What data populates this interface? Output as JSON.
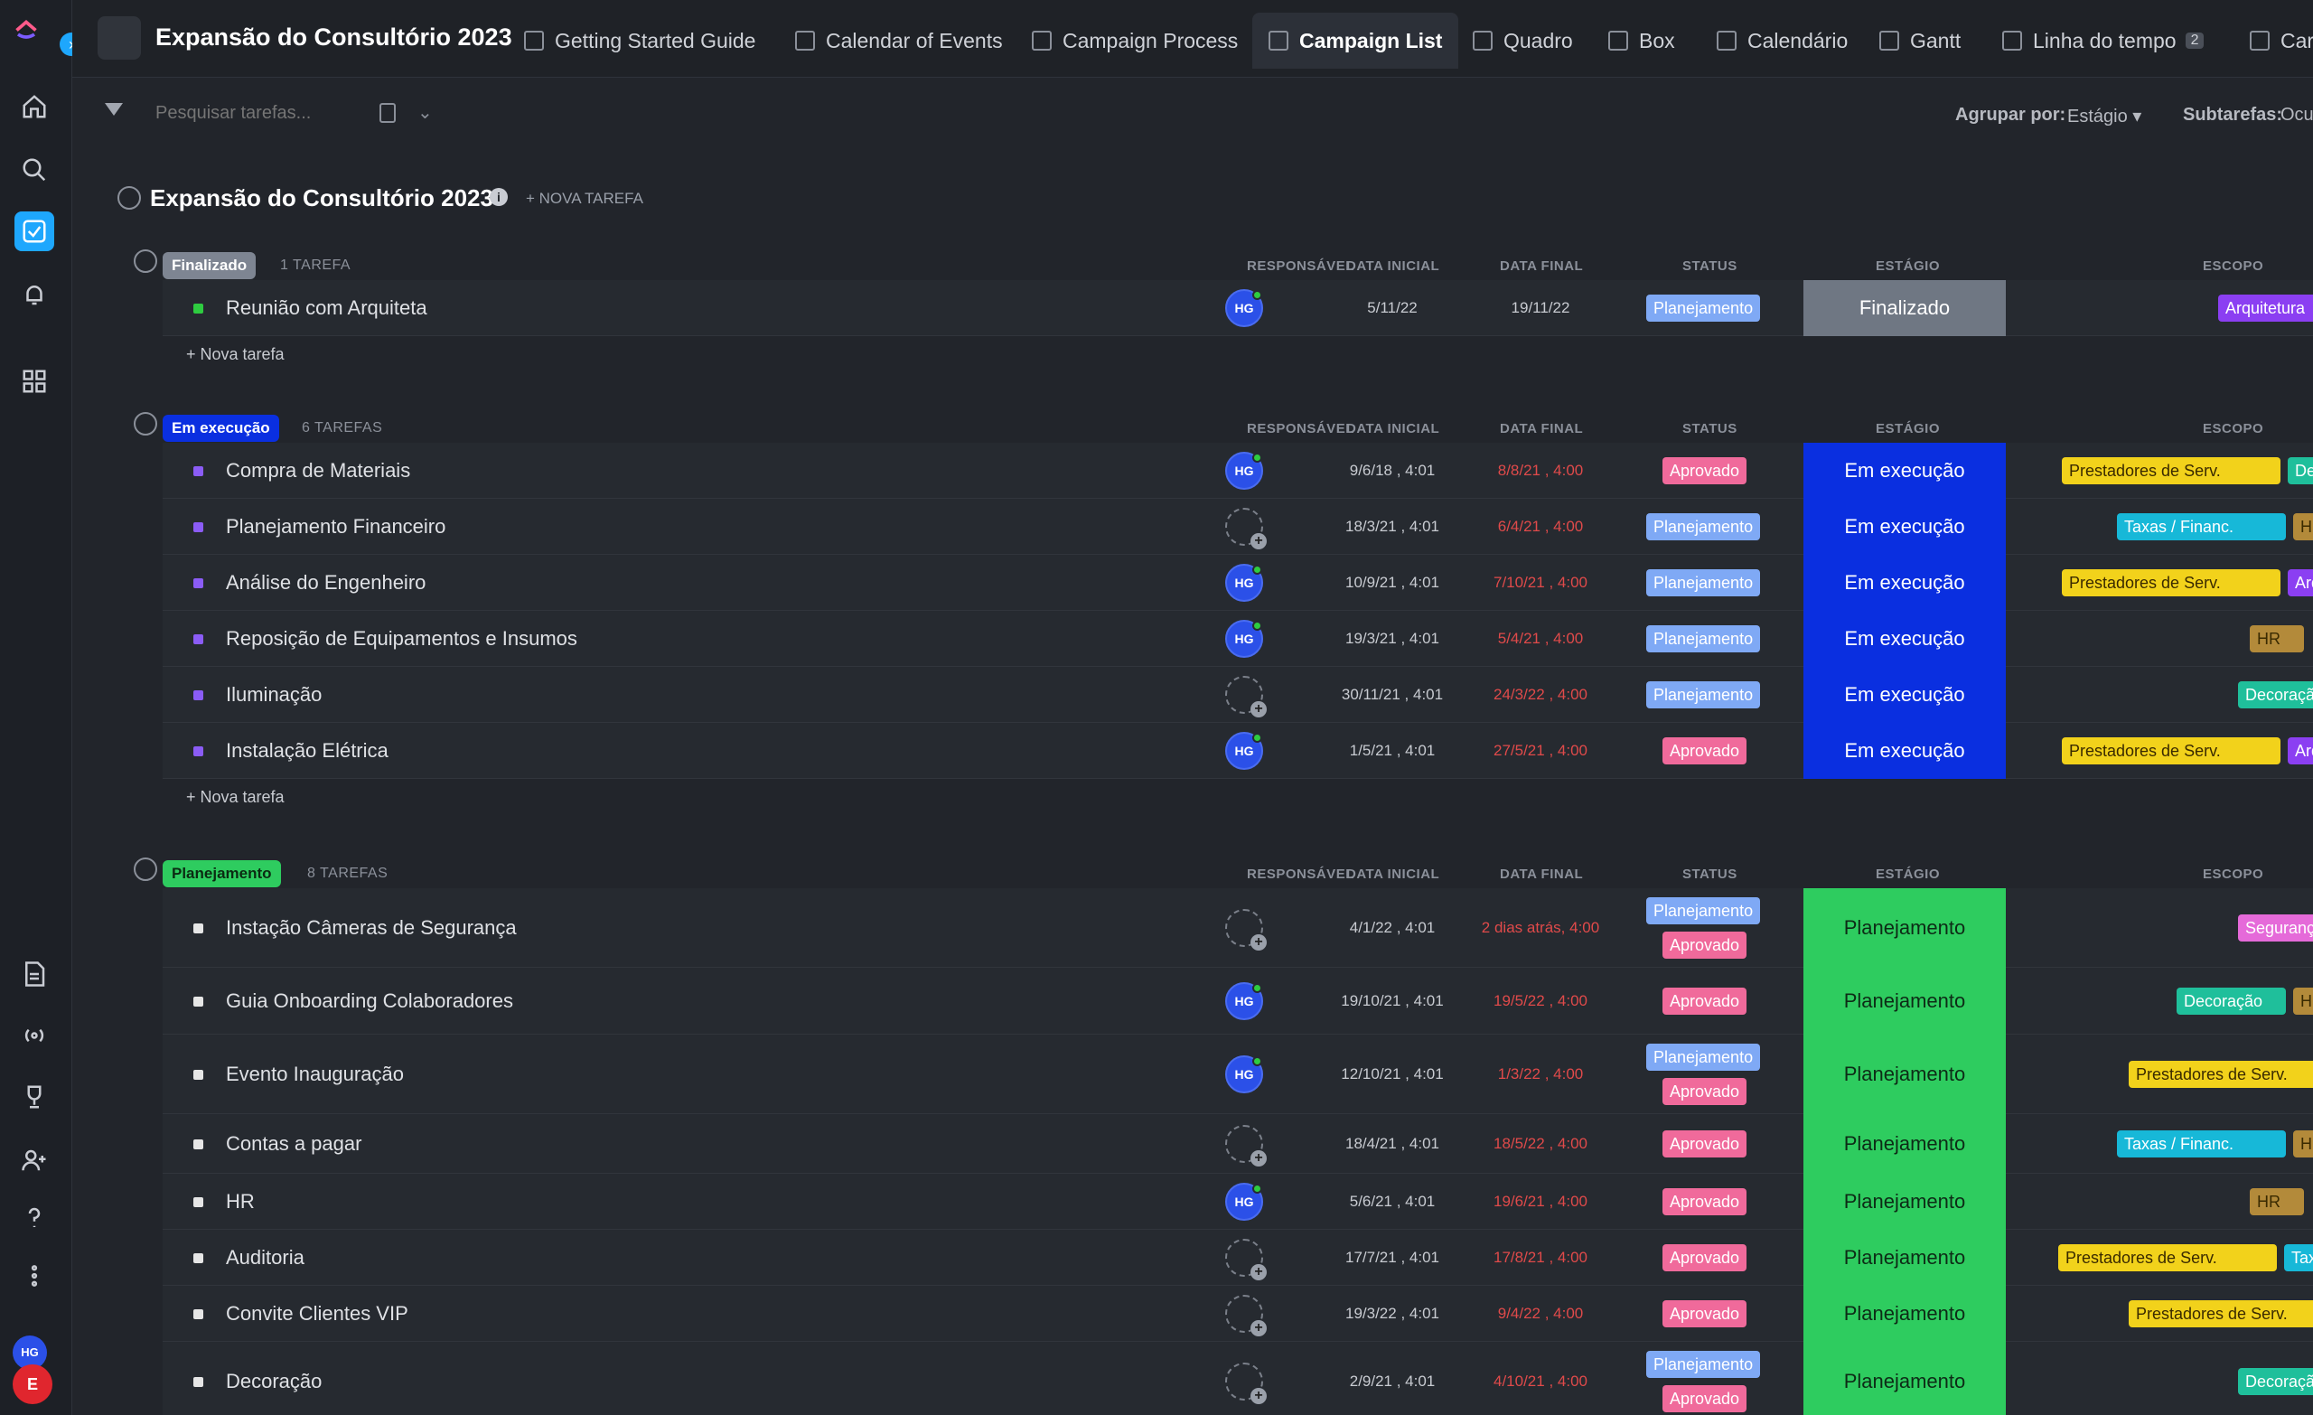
{
  "app": {
    "project_title": "Expansão do Consultório 2023",
    "user_initials": "HG",
    "user_badge": "E"
  },
  "tabs": [
    "Getting Started Guide",
    "Calendar of Events",
    "Campaign Process",
    "Campaign List",
    "Quadro",
    "Box",
    "Calendário",
    "Gantt",
    "Linha do tempo",
    "Car"
  ],
  "tab_badge": "2",
  "toolbar": {
    "search_placeholder": "Pesquisar tarefas...",
    "group_label": "Agrupar por:",
    "group_value": "Estágio",
    "subtasks_label": "Subtarefas:",
    "subtasks_value": "Ocu"
  },
  "list": {
    "title": "Expansão do Consultório 2023",
    "new_task": "+ NOVA TAREFA"
  },
  "columns": {
    "responsavel": "RESPONSÁVEL",
    "data_inicial": "DATA INICIAL",
    "data_final": "DATA FINAL",
    "status": "STATUS",
    "estagio": "ESTÁGIO",
    "escopo": "ESCOPO"
  },
  "new_task_row": "+ Nova tarefa",
  "groups": [
    {
      "name": "Finalizado",
      "count": "1 TAREFA",
      "color": "#7e8592",
      "tasks": [
        {
          "name": "Reunião com Arquiteta",
          "assignee": "HG",
          "start": "5/11/22",
          "end": "19/11/22",
          "end_red": false,
          "status": [
            "Planejamento"
          ],
          "stage": "Finalizado",
          "scope": [
            "Arquitetura"
          ]
        }
      ]
    },
    {
      "name": "Em execução",
      "count": "6 TAREFAS",
      "color": "#0a2fe0",
      "tasks": [
        {
          "name": "Compra de Materiais",
          "assignee": "HG",
          "start": "9/6/18 , 4:01",
          "end": "8/8/21 , 4:00",
          "end_red": true,
          "status": [
            "Aprovado"
          ],
          "stage": "Em execução",
          "scope": [
            "Prestadores de Serv.",
            "Deco"
          ]
        },
        {
          "name": "Planejamento Financeiro",
          "assignee": "",
          "start": "18/3/21 , 4:01",
          "end": "6/4/21 , 4:00",
          "end_red": true,
          "status": [
            "Planejamento"
          ],
          "stage": "Em execução",
          "scope": [
            "Taxas / Financ.",
            "HR"
          ]
        },
        {
          "name": "Análise do Engenheiro",
          "assignee": "HG",
          "start": "10/9/21 , 4:01",
          "end": "7/10/21 , 4:00",
          "end_red": true,
          "status": [
            "Planejamento"
          ],
          "stage": "Em execução",
          "scope": [
            "Prestadores de Serv.",
            "Arqu"
          ]
        },
        {
          "name": "Reposição de Equipamentos e Insumos",
          "assignee": "HG",
          "start": "19/3/21 , 4:01",
          "end": "5/4/21 , 4:00",
          "end_red": true,
          "status": [
            "Planejamento"
          ],
          "stage": "Em execução",
          "scope": [
            "HR"
          ]
        },
        {
          "name": "Iluminação",
          "assignee": "",
          "start": "30/11/21 , 4:01",
          "end": "24/3/22 , 4:00",
          "end_red": true,
          "status": [
            "Planejamento"
          ],
          "stage": "Em execução",
          "scope": [
            "Decoração"
          ]
        },
        {
          "name": "Instalação Elétrica",
          "assignee": "HG",
          "start": "1/5/21 , 4:01",
          "end": "27/5/21 , 4:00",
          "end_red": true,
          "status": [
            "Aprovado"
          ],
          "stage": "Em execução",
          "scope": [
            "Prestadores de Serv.",
            "Arqu"
          ]
        }
      ]
    },
    {
      "name": "Planejamento",
      "count": "8 TAREFAS",
      "color": "#2ecc5f",
      "tasks": [
        {
          "name": "Instação Câmeras de Segurança",
          "assignee": "",
          "start": "4/1/22 , 4:01",
          "end": "2 dias atrás, 4:00",
          "end_red": true,
          "status": [
            "Planejamento",
            "Aprovado"
          ],
          "stage": "Planejamento",
          "scope": [
            "Segurança"
          ]
        },
        {
          "name": "Guia Onboarding Colaboradores",
          "assignee": "HG",
          "start": "19/10/21 , 4:01",
          "end": "19/5/22 , 4:00",
          "end_red": true,
          "status": [
            "Aprovado"
          ],
          "stage": "Planejamento",
          "scope": [
            "Decoração",
            "HR"
          ]
        },
        {
          "name": "Evento Inauguração",
          "assignee": "HG",
          "start": "12/10/21 , 4:01",
          "end": "1/3/22 , 4:00",
          "end_red": true,
          "status": [
            "Planejamento",
            "Aprovado"
          ],
          "stage": "Planejamento",
          "scope": [
            "Prestadores de Serv."
          ]
        },
        {
          "name": "Contas a pagar",
          "assignee": "",
          "start": "18/4/21 , 4:01",
          "end": "18/5/22 , 4:00",
          "end_red": true,
          "status": [
            "Aprovado"
          ],
          "stage": "Planejamento",
          "scope": [
            "Taxas / Financ.",
            "HR"
          ]
        },
        {
          "name": "HR",
          "assignee": "HG",
          "start": "5/6/21 , 4:01",
          "end": "19/6/21 , 4:00",
          "end_red": true,
          "status": [
            "Aprovado"
          ],
          "stage": "Planejamento",
          "scope": [
            "HR"
          ]
        },
        {
          "name": "Auditoria",
          "assignee": "",
          "start": "17/7/21 , 4:01",
          "end": "17/8/21 , 4:00",
          "end_red": true,
          "status": [
            "Aprovado"
          ],
          "stage": "Planejamento",
          "scope": [
            "Prestadores de Serv.",
            "Taxas / Fin"
          ]
        },
        {
          "name": "Convite Clientes VIP",
          "assignee": "",
          "start": "19/3/22 , 4:01",
          "end": "9/4/22 , 4:00",
          "end_red": true,
          "status": [
            "Aprovado"
          ],
          "stage": "Planejamento",
          "scope": [
            "Prestadores de Serv."
          ]
        },
        {
          "name": "Decoração",
          "assignee": "",
          "start": "2/9/21 , 4:01",
          "end": "4/10/21 , 4:00",
          "end_red": true,
          "status": [
            "Planejamento",
            "Aprovado"
          ],
          "stage": "Planejamento",
          "scope": [
            "Decoração"
          ]
        }
      ]
    }
  ],
  "colors": {
    "Planejamento": "#7fa9f5",
    "Aprovado": "#f06a9b",
    "Finalizado": "#6f7783",
    "Em execução": "#0a2fe0",
    "Stage-Planejamento": "#2ecc5f",
    "Arquitetura": "#8b3ff2",
    "Prestadores de Serv.": "#f2d21b",
    "Deco": "#1fbf9b",
    "Decoração": "#1fbf9b",
    "Taxas / Financ.": "#17b8d8",
    "Taxas / Fin": "#17b8d8",
    "HR": "#b38a3a",
    "Arqu": "#8b3ff2",
    "Segurança": "#e56ad9"
  }
}
